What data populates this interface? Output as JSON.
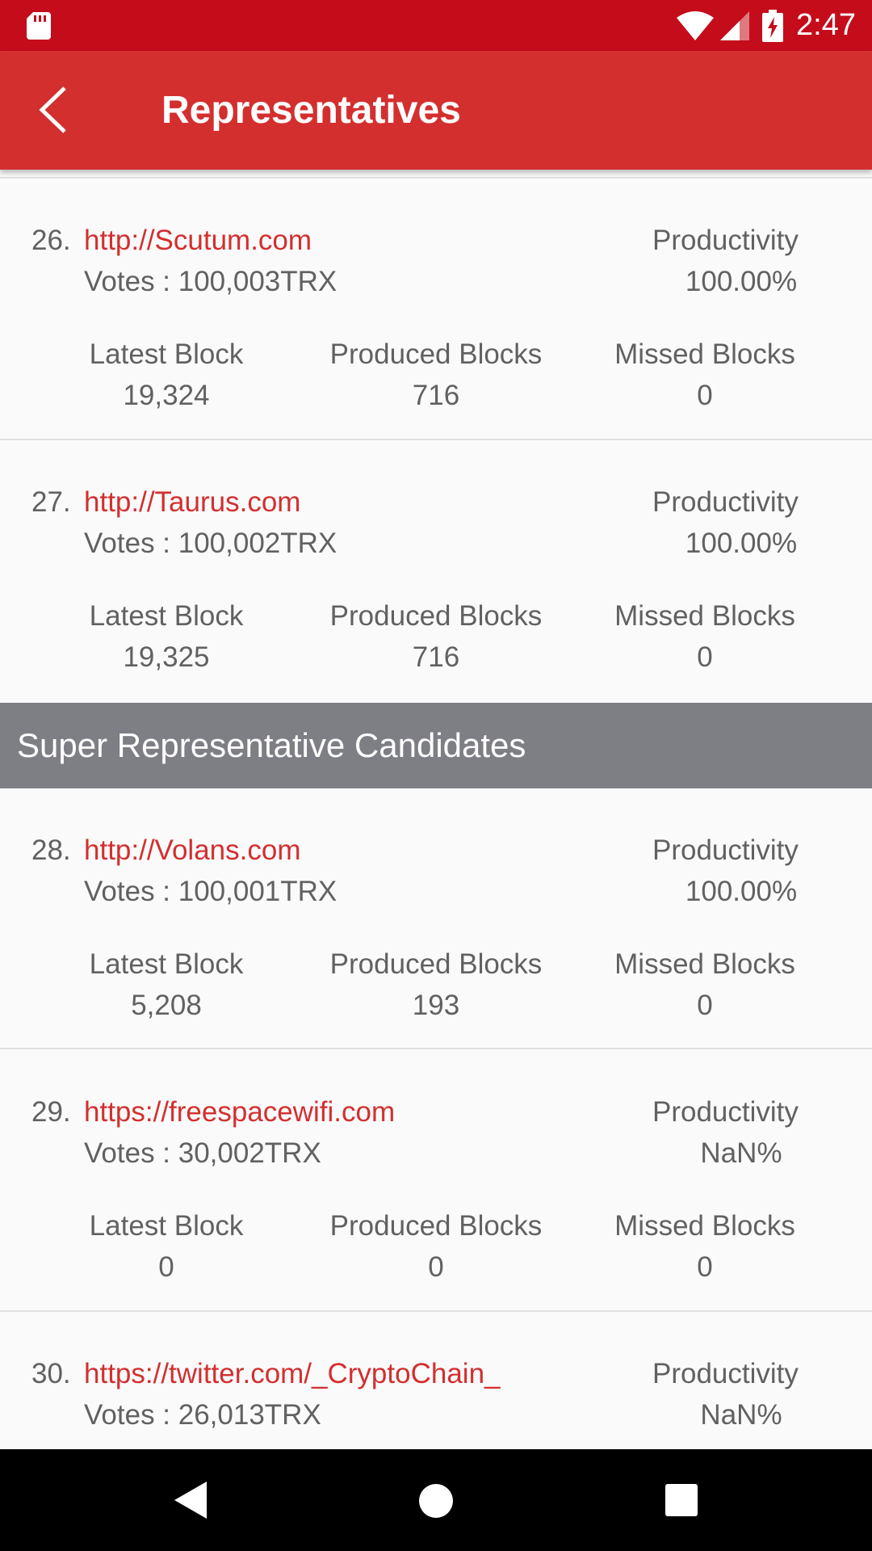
{
  "status_bar": {
    "time": "2:47",
    "icons": [
      "sd-card-icon",
      "wifi-icon",
      "signal-icon",
      "battery-charging-icon"
    ]
  },
  "app_bar": {
    "title": "Representatives",
    "back_icon": "chevron-left-icon"
  },
  "labels": {
    "productivity": "Productivity",
    "latest_block": "Latest Block",
    "produced_blocks": "Produced Blocks",
    "missed_blocks": "Missed Blocks"
  },
  "representatives": [
    {
      "rank": "26.",
      "url": "http://Scutum.com",
      "votes": "Votes : 100,003TRX",
      "productivity": "100.00%",
      "latest_block": "19,324",
      "produced_blocks": "716",
      "missed_blocks": "0"
    },
    {
      "rank": "27.",
      "url": "http://Taurus.com",
      "votes": "Votes : 100,002TRX",
      "productivity": "100.00%",
      "latest_block": "19,325",
      "produced_blocks": "716",
      "missed_blocks": "0"
    }
  ],
  "section_header": "Super Representative Candidates",
  "candidates": [
    {
      "rank": "28.",
      "url": "http://Volans.com",
      "votes": "Votes : 100,001TRX",
      "productivity": "100.00%",
      "latest_block": "5,208",
      "produced_blocks": "193",
      "missed_blocks": "0"
    },
    {
      "rank": "29.",
      "url": "https://freespacewifi.com",
      "votes": "Votes : 30,002TRX",
      "productivity": "NaN%",
      "latest_block": "0",
      "produced_blocks": "0",
      "missed_blocks": "0"
    },
    {
      "rank": "30.",
      "url": "https://twitter.com/_CryptoChain_",
      "votes": "Votes : 26,013TRX",
      "productivity": "NaN%"
    }
  ],
  "nav_bar": {
    "icons": [
      "nav-back-icon",
      "nav-home-icon",
      "nav-recents-icon"
    ]
  },
  "colors": {
    "status_bar": "#c40c1b",
    "app_bar": "#d32f2f",
    "accent_link": "#d32f2f",
    "section_header": "#7e7e85",
    "text_secondary": "#616161",
    "background": "#fafafa"
  }
}
